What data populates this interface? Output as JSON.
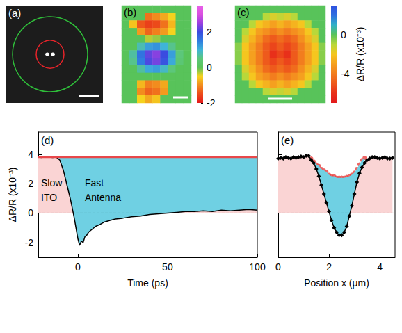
{
  "chart_data": [
    {
      "type": "image",
      "title": "(a)"
    },
    {
      "type": "heatmap",
      "title": "(b)",
      "tick_labels": false,
      "colorbar_lim": [
        -2,
        3.5
      ],
      "colorbar_ticks": [
        -2,
        0,
        2
      ],
      "colorbar_colors": [
        "#e41a1c",
        "#ec4a1a",
        "#f28c1e",
        "#f5d21e",
        "#58c35a",
        "#5cc77a",
        "#3fb4d8",
        "#2f7de0",
        "#3a4be0",
        "#9a3fe0",
        "#d94fe0",
        "#e860e8"
      ],
      "cells": [
        [
          0,
          0,
          0,
          0,
          0,
          0,
          0,
          0,
          0
        ],
        [
          0,
          0,
          0,
          -1.2,
          -1.0,
          -0.8,
          -0.5,
          0,
          0
        ],
        [
          0,
          -0.6,
          -1.4,
          -1.6,
          -1.5,
          -1.2,
          -0.7,
          0,
          0
        ],
        [
          0,
          0,
          -0.9,
          -1.3,
          -1.1,
          -0.9,
          -0.5,
          0,
          0
        ],
        [
          0,
          0,
          0,
          -0.3,
          -0.2,
          0,
          0,
          0,
          0
        ],
        [
          0,
          0,
          0.8,
          1.2,
          1.3,
          1.0,
          0.6,
          0,
          0
        ],
        [
          0,
          0.7,
          1.6,
          2.2,
          2.4,
          2.0,
          1.2,
          0.5,
          0
        ],
        [
          0,
          0.6,
          1.5,
          2.1,
          2.3,
          1.9,
          1.1,
          0.4,
          0
        ],
        [
          0,
          0,
          0.7,
          1.1,
          1.2,
          0.9,
          0.5,
          0,
          0
        ],
        [
          0,
          0,
          0,
          0,
          0,
          0,
          0,
          0,
          0
        ],
        [
          0,
          0,
          -0.7,
          -1.1,
          -1.0,
          -0.8,
          0,
          0,
          0
        ],
        [
          0,
          0,
          -1.0,
          -1.3,
          -1.2,
          -0.9,
          0,
          0,
          0
        ],
        [
          0,
          0,
          -0.5,
          -0.8,
          -0.6,
          0,
          0,
          0,
          0
        ]
      ]
    },
    {
      "type": "heatmap",
      "title": "(c)",
      "tick_labels": false,
      "colorbar_lim": [
        -7,
        3
      ],
      "colorbar_ticks": [
        -4,
        0
      ],
      "colorbar_label": "ΔR/R (x10⁻³)",
      "colorbar_colors": [
        "#e31a1c",
        "#e8301a",
        "#ee5a1c",
        "#f27d1e",
        "#f5a01f",
        "#f5c61f",
        "#b8d83a",
        "#58c35a",
        "#2fb0c8",
        "#2f70e0",
        "#2f50e0"
      ],
      "cells": [
        [
          0,
          0,
          0,
          0,
          0,
          0,
          0,
          0,
          0,
          0,
          0,
          0,
          0
        ],
        [
          0,
          0,
          0,
          0,
          -1,
          -1.5,
          -1.2,
          -1.5,
          -1,
          0,
          0,
          0,
          0
        ],
        [
          0,
          0,
          -1,
          -2,
          -2.5,
          -3,
          -2.5,
          -3,
          -2.5,
          -2,
          -1,
          0,
          0
        ],
        [
          0,
          -1,
          -2,
          -3,
          -3.5,
          -4,
          -3.5,
          -4,
          -3.5,
          -3,
          -2,
          -1,
          0
        ],
        [
          0,
          -1.5,
          -2.5,
          -3.5,
          -4.5,
          -5,
          -4.5,
          -5,
          -4.5,
          -3.5,
          -2.5,
          -1.5,
          0
        ],
        [
          -0.5,
          -2,
          -3,
          -4,
          -5,
          -5.5,
          -5,
          -5.5,
          -5,
          -4,
          -3,
          -2,
          -0.5
        ],
        [
          -0.5,
          -2,
          -3,
          -4,
          -5,
          -6,
          -5.5,
          -6,
          -5,
          -4,
          -3,
          -2,
          -0.5
        ],
        [
          -0.5,
          -2,
          -3,
          -4,
          -5,
          -5.5,
          -5,
          -5.5,
          -5,
          -4,
          -3,
          -2,
          -0.5
        ],
        [
          0,
          -1.5,
          -2.5,
          -3.5,
          -4.5,
          -5,
          -4.5,
          -5,
          -4.5,
          -3.5,
          -2.5,
          -1.5,
          0
        ],
        [
          0,
          -1,
          -2,
          -3,
          -3.5,
          -4,
          -3.5,
          -4,
          -3.5,
          -3,
          -2,
          -1,
          0
        ],
        [
          0,
          0,
          -1,
          -2,
          -2.5,
          -3,
          -2.5,
          -3,
          -2.5,
          -2,
          -1,
          0,
          0
        ],
        [
          0,
          0,
          0,
          0,
          -1,
          -1.5,
          -1.2,
          -1.5,
          -1,
          0,
          0,
          0,
          0
        ],
        [
          0,
          0,
          0,
          0,
          0,
          0,
          0,
          0,
          0,
          0,
          0,
          0,
          0
        ]
      ]
    },
    {
      "type": "line",
      "title": "(d)",
      "x_label": "Time (ps)",
      "y_label": "ΔR/R (x10⁻³)",
      "xlim": [
        -22,
        100
      ],
      "xticks": [
        0,
        50,
        100
      ],
      "ylim": [
        -3,
        5.5
      ],
      "yticks": [
        -2,
        0,
        2,
        4
      ],
      "annotations": [
        "Slow ITO",
        "Fast Antenna"
      ],
      "series": [
        {
          "type": "line",
          "color": "#000000",
          "x": [
            -22,
            -20,
            -18,
            -16,
            -14,
            -12,
            -10,
            -8,
            -6,
            -4,
            -2,
            -1,
            0,
            1,
            2,
            3,
            4,
            5,
            6,
            8,
            10,
            12,
            15,
            18,
            21,
            25,
            30,
            35,
            40,
            45,
            50,
            55,
            60,
            65,
            70,
            75,
            80,
            85,
            90,
            95,
            100
          ],
          "values": [
            3.8,
            3.78,
            3.82,
            3.8,
            3.78,
            3.8,
            3.6,
            2.9,
            1.9,
            0.9,
            -0.3,
            -1.0,
            -1.7,
            -2.2,
            -1.9,
            -2.0,
            -1.6,
            -1.5,
            -1.3,
            -1.1,
            -0.9,
            -0.8,
            -0.6,
            -0.5,
            -0.4,
            -0.35,
            -0.25,
            -0.2,
            -0.1,
            -0.05,
            0.0,
            0.05,
            0.1,
            0.1,
            0.15,
            0.1,
            0.2,
            0.15,
            0.2,
            0.25,
            0.2
          ]
        },
        {
          "type": "line",
          "color": "#e8474a",
          "x": [
            -22,
            100
          ],
          "values": [
            3.8,
            3.8
          ]
        },
        {
          "type": "line",
          "color": "#000000",
          "line_style": "dashed",
          "x": [
            -22,
            100
          ],
          "values": [
            0,
            0
          ]
        }
      ]
    },
    {
      "type": "line",
      "title": "(e)",
      "x_label": "Position x (μm)",
      "tick_labels": "x",
      "xlim": [
        0,
        4.6
      ],
      "xticks": [
        0,
        2,
        4
      ],
      "ylim": [
        -3,
        5.5
      ],
      "yticks": [
        -2,
        0,
        2,
        4
      ],
      "series": [
        {
          "type": "line",
          "marker": "diamond",
          "color": "#000000",
          "x": [
            0,
            0.1,
            0.2,
            0.3,
            0.4,
            0.5,
            0.6,
            0.7,
            0.8,
            0.9,
            1.0,
            1.1,
            1.2,
            1.3,
            1.4,
            1.5,
            1.6,
            1.7,
            1.8,
            1.9,
            2.0,
            2.1,
            2.2,
            2.3,
            2.4,
            2.5,
            2.6,
            2.7,
            2.8,
            2.9,
            3.0,
            3.1,
            3.2,
            3.3,
            3.4,
            3.5,
            3.6,
            3.7,
            3.8,
            3.9,
            4.0,
            4.1,
            4.2,
            4.3,
            4.4,
            4.5
          ],
          "values": [
            3.7,
            3.75,
            3.7,
            3.8,
            3.75,
            3.7,
            3.8,
            3.75,
            3.8,
            3.85,
            3.8,
            3.9,
            3.9,
            3.6,
            3.4,
            3.0,
            2.5,
            1.9,
            1.3,
            0.7,
            0.1,
            -0.5,
            -1.0,
            -1.3,
            -1.5,
            -1.5,
            -1.3,
            -0.9,
            -0.2,
            0.5,
            1.3,
            2.1,
            2.7,
            3.1,
            3.4,
            3.6,
            3.7,
            3.8,
            3.8,
            3.75,
            3.7,
            3.75,
            3.8,
            3.7,
            3.7,
            3.75
          ]
        },
        {
          "type": "scatter",
          "marker": "circle",
          "color": "#e8403f",
          "x": [
            1.3,
            1.4,
            1.5,
            1.6,
            1.7,
            1.8,
            1.9,
            2.0,
            2.1,
            2.2,
            2.3,
            2.4,
            2.5,
            2.6,
            2.7,
            2.8,
            2.9,
            3.0,
            3.1,
            3.2,
            3.3,
            3.4
          ],
          "values": [
            3.7,
            3.5,
            3.3,
            3.2,
            3.0,
            2.9,
            2.8,
            2.6,
            2.5,
            2.5,
            2.4,
            2.4,
            2.4,
            2.4,
            2.45,
            2.5,
            2.6,
            2.75,
            3.0,
            3.3,
            3.6,
            3.75
          ]
        },
        {
          "type": "line",
          "color": "#000000",
          "line_style": "dashed",
          "x": [
            0,
            4.6
          ],
          "values": [
            0,
            0
          ]
        }
      ]
    }
  ]
}
